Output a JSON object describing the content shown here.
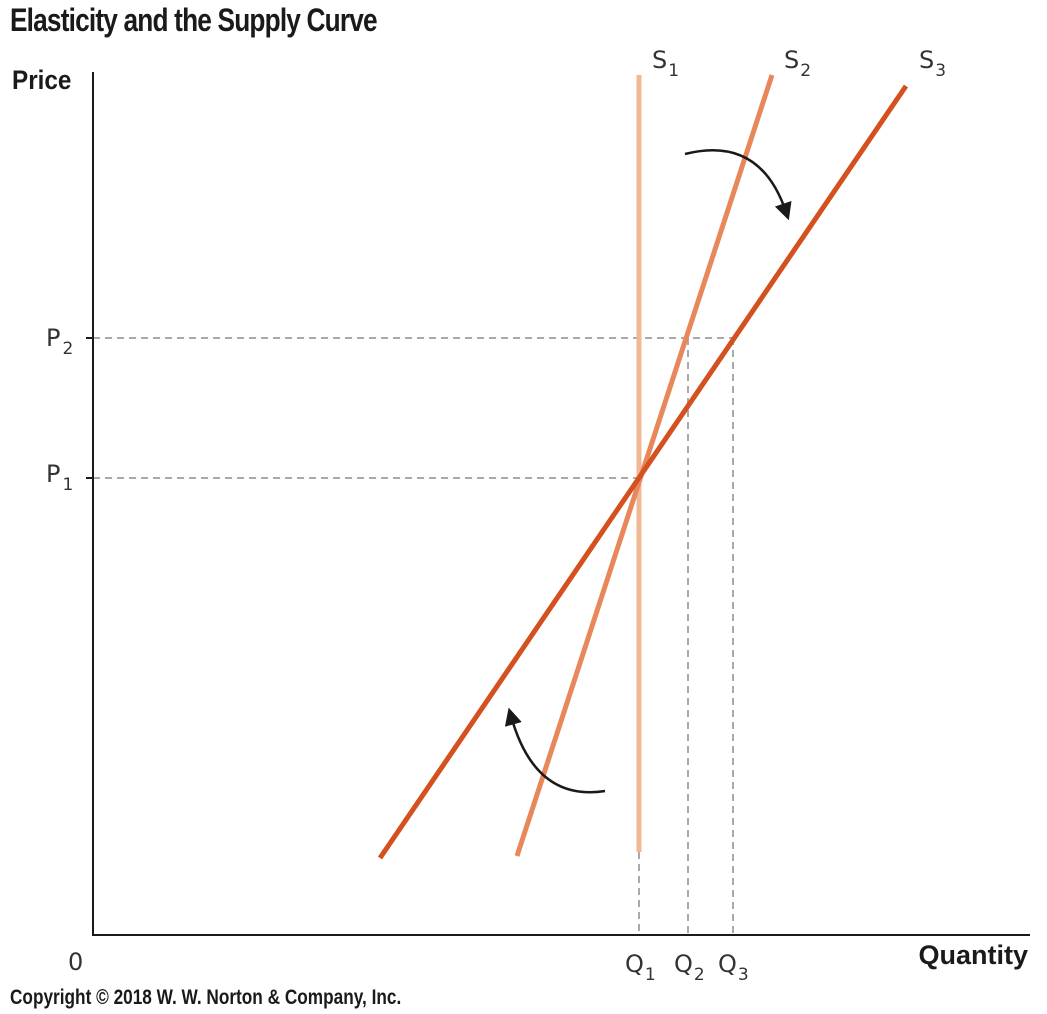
{
  "title": "Elasticity and the Supply Curve",
  "copyright": "Copyright © 2018 W. W. Norton & Company, Inc.",
  "axes": {
    "y_title": "Price",
    "x_title": "Quantity",
    "origin": "0"
  },
  "price_levels": [
    {
      "id": "p2",
      "main": "P",
      "sub": "2"
    },
    {
      "id": "p1",
      "main": "P",
      "sub": "1"
    }
  ],
  "quantity_levels": [
    {
      "id": "q1",
      "main": "Q",
      "sub": "1"
    },
    {
      "id": "q2",
      "main": "Q",
      "sub": "2"
    },
    {
      "id": "q3",
      "main": "Q",
      "sub": "3"
    }
  ],
  "curves": [
    {
      "id": "s1",
      "main": "S",
      "sub": "1",
      "color": "#f0b894",
      "description": "perfectly inelastic (vertical)"
    },
    {
      "id": "s2",
      "main": "S",
      "sub": "2",
      "color": "#e8875a",
      "description": "inelastic"
    },
    {
      "id": "s3",
      "main": "S",
      "sub": "3",
      "color": "#d4501f",
      "description": "elastic"
    }
  ],
  "colors": {
    "axis": "#1a1a1a",
    "guide": "#aaaaaa",
    "arrow": "#1a1a1a"
  }
}
